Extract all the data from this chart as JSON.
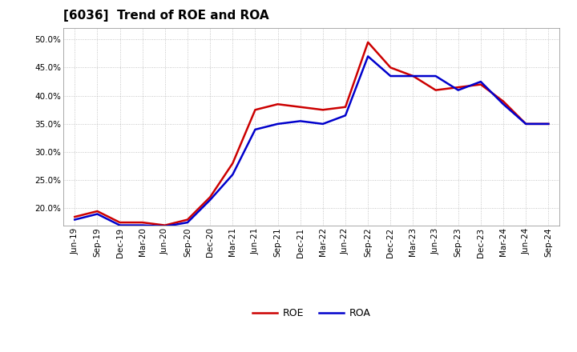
{
  "title": "[6036]  Trend of ROE and ROA",
  "labels": [
    "Jun-19",
    "Sep-19",
    "Dec-19",
    "Mar-20",
    "Jun-20",
    "Sep-20",
    "Dec-20",
    "Mar-21",
    "Jun-21",
    "Sep-21",
    "Dec-21",
    "Mar-22",
    "Jun-22",
    "Sep-22",
    "Dec-22",
    "Mar-23",
    "Jun-23",
    "Sep-23",
    "Dec-23",
    "Mar-24",
    "Jun-24",
    "Sep-24"
  ],
  "ROE": [
    18.5,
    19.5,
    17.5,
    17.5,
    17.0,
    18.0,
    22.0,
    28.0,
    37.5,
    38.5,
    38.0,
    37.5,
    38.0,
    49.5,
    45.0,
    43.5,
    41.0,
    41.5,
    42.0,
    39.0,
    35.0,
    35.0
  ],
  "ROA": [
    18.0,
    19.0,
    17.0,
    17.0,
    16.8,
    17.5,
    21.5,
    26.0,
    34.0,
    35.0,
    35.5,
    35.0,
    36.5,
    47.0,
    43.5,
    43.5,
    43.5,
    41.0,
    42.5,
    38.5,
    35.0,
    35.0
  ],
  "ylim": [
    17.0,
    52.0
  ],
  "yticks": [
    20.0,
    25.0,
    30.0,
    35.0,
    40.0,
    45.0,
    50.0
  ],
  "roe_color": "#cc0000",
  "roa_color": "#0000cc",
  "bg_color": "#ffffff",
  "plot_bg_color": "#ffffff",
  "grid_color": "#999999",
  "line_width": 1.8,
  "title_fontsize": 11,
  "tick_fontsize": 7.5,
  "legend_fontsize": 9
}
